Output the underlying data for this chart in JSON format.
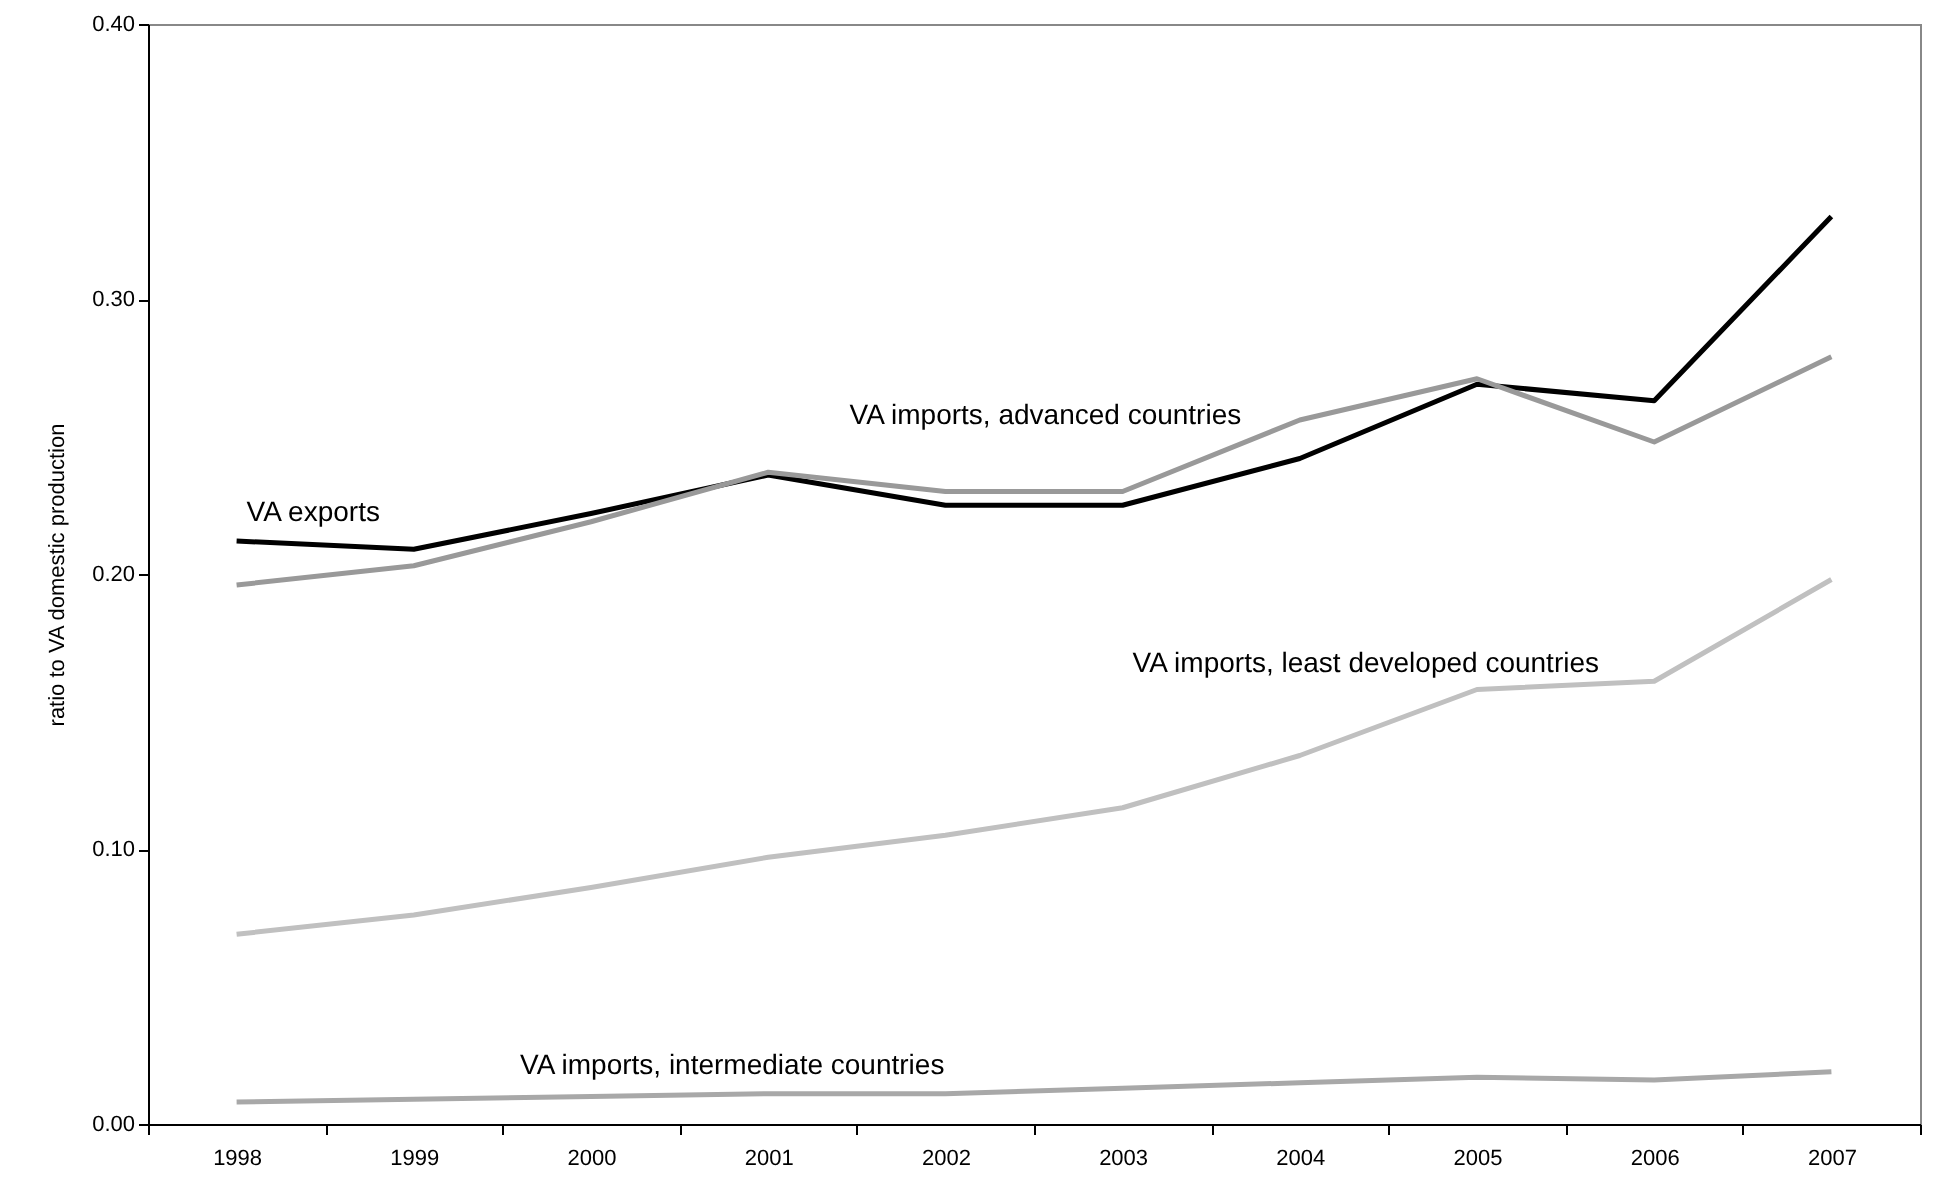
{
  "chart_data": {
    "type": "line",
    "ylabel": "ratio to VA domestic production",
    "categories": [
      "1998",
      "1999",
      "2000",
      "2001",
      "2002",
      "2003",
      "2004",
      "2005",
      "2006",
      "2007"
    ],
    "series": [
      {
        "name": "VA exports",
        "color": "#000000",
        "values": [
          0.212,
          0.209,
          0.222,
          0.236,
          0.225,
          0.225,
          0.242,
          0.269,
          0.263,
          0.33
        ]
      },
      {
        "name": "VA imports, advanced countries",
        "color": "#999999",
        "values": [
          0.196,
          0.203,
          0.219,
          0.237,
          0.23,
          0.23,
          0.256,
          0.271,
          0.248,
          0.279
        ]
      },
      {
        "name": "VA imports, least developed countries",
        "color": "#c0c0c0",
        "values": [
          0.069,
          0.076,
          0.086,
          0.097,
          0.105,
          0.115,
          0.134,
          0.158,
          0.161,
          0.198
        ]
      },
      {
        "name": "VA imports, intermediate countries",
        "color": "#a8a8a8",
        "values": [
          0.008,
          0.009,
          0.01,
          0.011,
          0.011,
          0.013,
          0.015,
          0.017,
          0.016,
          0.019
        ]
      }
    ],
    "ylim": [
      0,
      0.4
    ],
    "yticks": [
      {
        "value": 0,
        "label": "0.00"
      },
      {
        "value": 0.1,
        "label": "0.10"
      },
      {
        "value": 0.2,
        "label": "0.20"
      },
      {
        "value": 0.3,
        "label": "0.30"
      },
      {
        "value": 0.4,
        "label": "0.40"
      }
    ]
  }
}
